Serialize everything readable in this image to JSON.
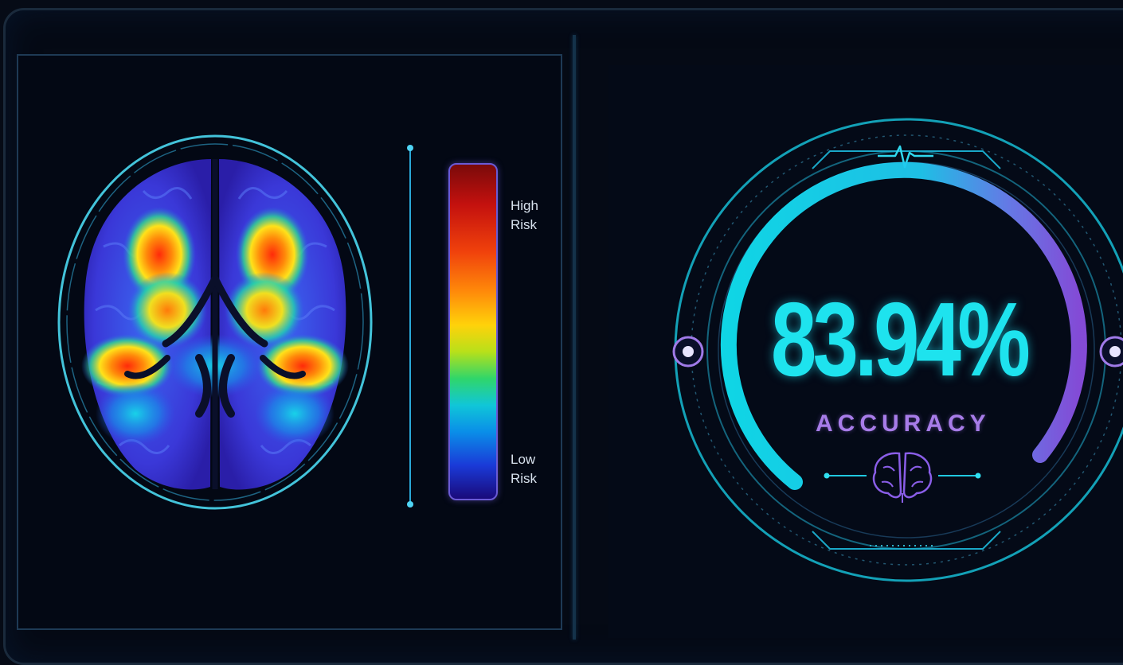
{
  "colorbar": {
    "high_label": "High\nRisk",
    "low_label": "Low\nRisk"
  },
  "gauge": {
    "value_text": "83.94%",
    "value": 83.94,
    "label": "ACCURACY"
  },
  "icons": [
    "brain-scan-heatmap",
    "heartbeat-icon",
    "brain-icon"
  ],
  "colors": {
    "accent_cyan": "#1ee3ee",
    "accent_violet": "#a77ce8",
    "background": "#060b16"
  }
}
